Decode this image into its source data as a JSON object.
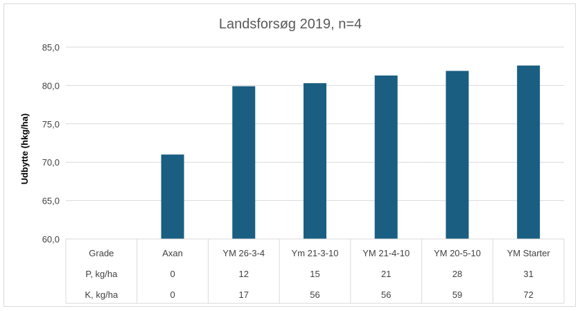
{
  "chart_data": {
    "type": "bar",
    "title": "Landsforsøg 2019, n=4",
    "ylabel": "Udbytte (hkg/ha)",
    "ylim": [
      60,
      85
    ],
    "yticks": [
      "60,0",
      "65,0",
      "70,0",
      "75,0",
      "80,0",
      "85,0"
    ],
    "grid": true,
    "categories": [
      "Axan",
      "YM 26-3-4",
      "Ym 21-3-10",
      "YM 21-4-10",
      "YM 20-5-10",
      "YM Starter"
    ],
    "values": [
      71.0,
      79.9,
      80.3,
      81.3,
      81.9,
      82.6
    ],
    "bar_color": "#1a5e82",
    "table": {
      "header": "Grade",
      "rows": [
        {
          "label": "P, kg/ha",
          "values": [
            "0",
            "12",
            "15",
            "21",
            "28",
            "31"
          ]
        },
        {
          "label": "K, kg/ha",
          "values": [
            "0",
            "17",
            "56",
            "56",
            "59",
            "72"
          ]
        }
      ]
    }
  }
}
